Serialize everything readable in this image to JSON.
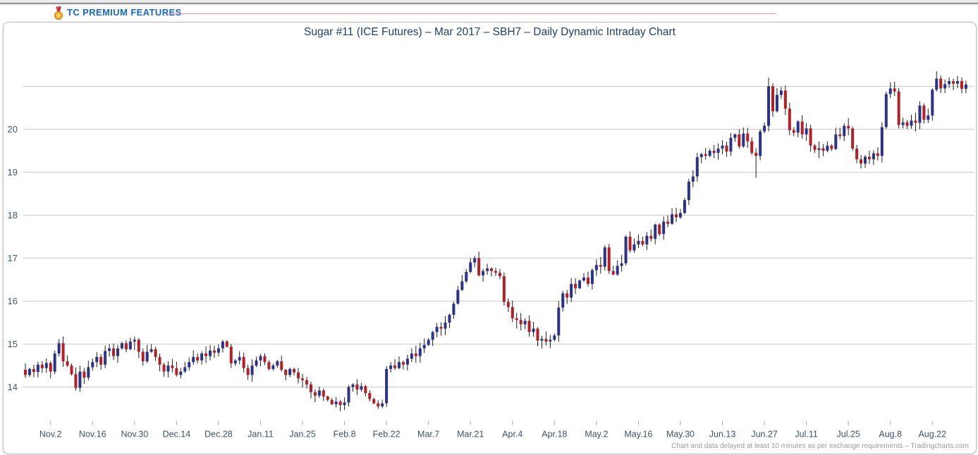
{
  "header": {
    "premium_label": "TC PREMIUM FEATURES"
  },
  "chart": {
    "title": "Sugar #11 (ICE Futures) – Mar 2017 – SBH7 – Daily Dynamic Intraday Chart",
    "footnote": "Chart and data delayed at least 10 minutes as per exchange requirements – Tradingcharts.com"
  },
  "chart_data": {
    "type": "candlestick",
    "title": "Sugar #11 (ICE Futures) – Mar 2017 – SBH7 – Daily Dynamic Intraday Chart",
    "xlabel": "",
    "ylabel": "",
    "ylim": [
      13.3,
      21.7
    ],
    "grid": "horizontal",
    "y_tick_labels": [
      14,
      15,
      16,
      17,
      18,
      19,
      20
    ],
    "y_gridlines": [
      14,
      15,
      16,
      17,
      18,
      19,
      20,
      21
    ],
    "x_tick_labels": [
      "Nov.2",
      "Nov.16",
      "Nov.30",
      "Dec.14",
      "Dec.28",
      "Jan.11",
      "Jan.25",
      "Feb.8",
      "Feb.22",
      "Mar.7",
      "Mar.21",
      "Apr.4",
      "Apr.18",
      "May.2",
      "May.16",
      "May.30",
      "Jun.13",
      "Jun.27",
      "Jul.11",
      "Jul.25",
      "Aug.8",
      "Aug.22"
    ],
    "x_tick_first_index": 6,
    "x_tick_step": 10,
    "first_open": 14.4,
    "closes": [
      14.28,
      14.42,
      14.35,
      14.52,
      14.44,
      14.56,
      14.36,
      14.78,
      15.02,
      14.6,
      14.5,
      14.3,
      13.98,
      14.36,
      14.22,
      14.46,
      14.58,
      14.7,
      14.52,
      14.84,
      14.9,
      14.72,
      14.9,
      15.02,
      14.88,
      15.06,
      15.1,
      14.82,
      14.6,
      14.82,
      14.88,
      14.7,
      14.52,
      14.36,
      14.5,
      14.44,
      14.28,
      14.36,
      14.46,
      14.58,
      14.7,
      14.62,
      14.78,
      14.72,
      14.85,
      14.8,
      14.9,
      15.06,
      14.94,
      14.55,
      14.62,
      14.7,
      14.44,
      14.28,
      14.5,
      14.62,
      14.72,
      14.58,
      14.42,
      14.5,
      14.6,
      14.4,
      14.28,
      14.42,
      14.34,
      14.2,
      14.16,
      14.06,
      13.88,
      13.8,
      13.92,
      13.78,
      13.7,
      13.6,
      13.66,
      13.58,
      13.64,
      14.0,
      14.06,
      13.94,
      14.02,
      13.86,
      13.72,
      13.62,
      13.55,
      13.62,
      14.42,
      14.5,
      14.44,
      14.58,
      14.52,
      14.66,
      14.78,
      14.72,
      14.9,
      14.98,
      15.1,
      15.28,
      15.4,
      15.36,
      15.5,
      15.68,
      15.94,
      16.26,
      16.46,
      16.68,
      16.9,
      17.0,
      16.6,
      16.7,
      16.76,
      16.7,
      16.66,
      16.58,
      15.98,
      15.86,
      15.6,
      15.56,
      15.46,
      15.54,
      15.28,
      15.36,
      15.08,
      15.12,
      15.06,
      15.1,
      15.2,
      15.85,
      16.18,
      16.08,
      16.4,
      16.3,
      16.48,
      16.55,
      16.4,
      16.72,
      16.84,
      16.8,
      17.25,
      16.7,
      16.62,
      16.82,
      16.88,
      17.5,
      17.18,
      17.32,
      17.4,
      17.32,
      17.52,
      17.45,
      17.78,
      17.56,
      17.85,
      17.8,
      18.02,
      17.95,
      18.05,
      18.35,
      18.78,
      18.9,
      19.35,
      19.42,
      19.38,
      19.5,
      19.45,
      19.55,
      19.62,
      19.48,
      19.8,
      19.88,
      19.6,
      19.9,
      19.72,
      19.45,
      19.38,
      19.95,
      20.08,
      21.0,
      20.42,
      20.8,
      20.9,
      20.48,
      19.98,
      19.92,
      20.18,
      19.88,
      20.02,
      19.62,
      19.52,
      19.56,
      19.5,
      19.62,
      19.54,
      19.88,
      19.84,
      20.08,
      20.02,
      19.55,
      19.3,
      19.2,
      19.36,
      19.3,
      19.44,
      19.38,
      20.05,
      20.82,
      20.95,
      20.88,
      20.1,
      20.16,
      20.08,
      20.2,
      20.15,
      20.55,
      20.22,
      20.32,
      20.92,
      21.18,
      20.95,
      21.05,
      21.12,
      21.06,
      21.12,
      20.94,
      21.04
    ],
    "wick_overrides": {
      "107": {
        "high": 17.05
      },
      "174": {
        "low": 18.87
      },
      "177": {
        "high": 21.2
      },
      "217": {
        "high": 21.35
      }
    },
    "colors": {
      "up": "#2a3385",
      "down": "#b22025",
      "wick": "#1b1b1b",
      "grid": "#cbcbcb",
      "tick": "#9aa7b0",
      "axis_text": "#3d5267",
      "y_axis_text": "#44566b",
      "title": "#1c4167",
      "premium_blue": "#1566cb",
      "pink_line": "#f4989c",
      "footnote_gray": "#9a9a9a"
    },
    "legend": "none"
  }
}
